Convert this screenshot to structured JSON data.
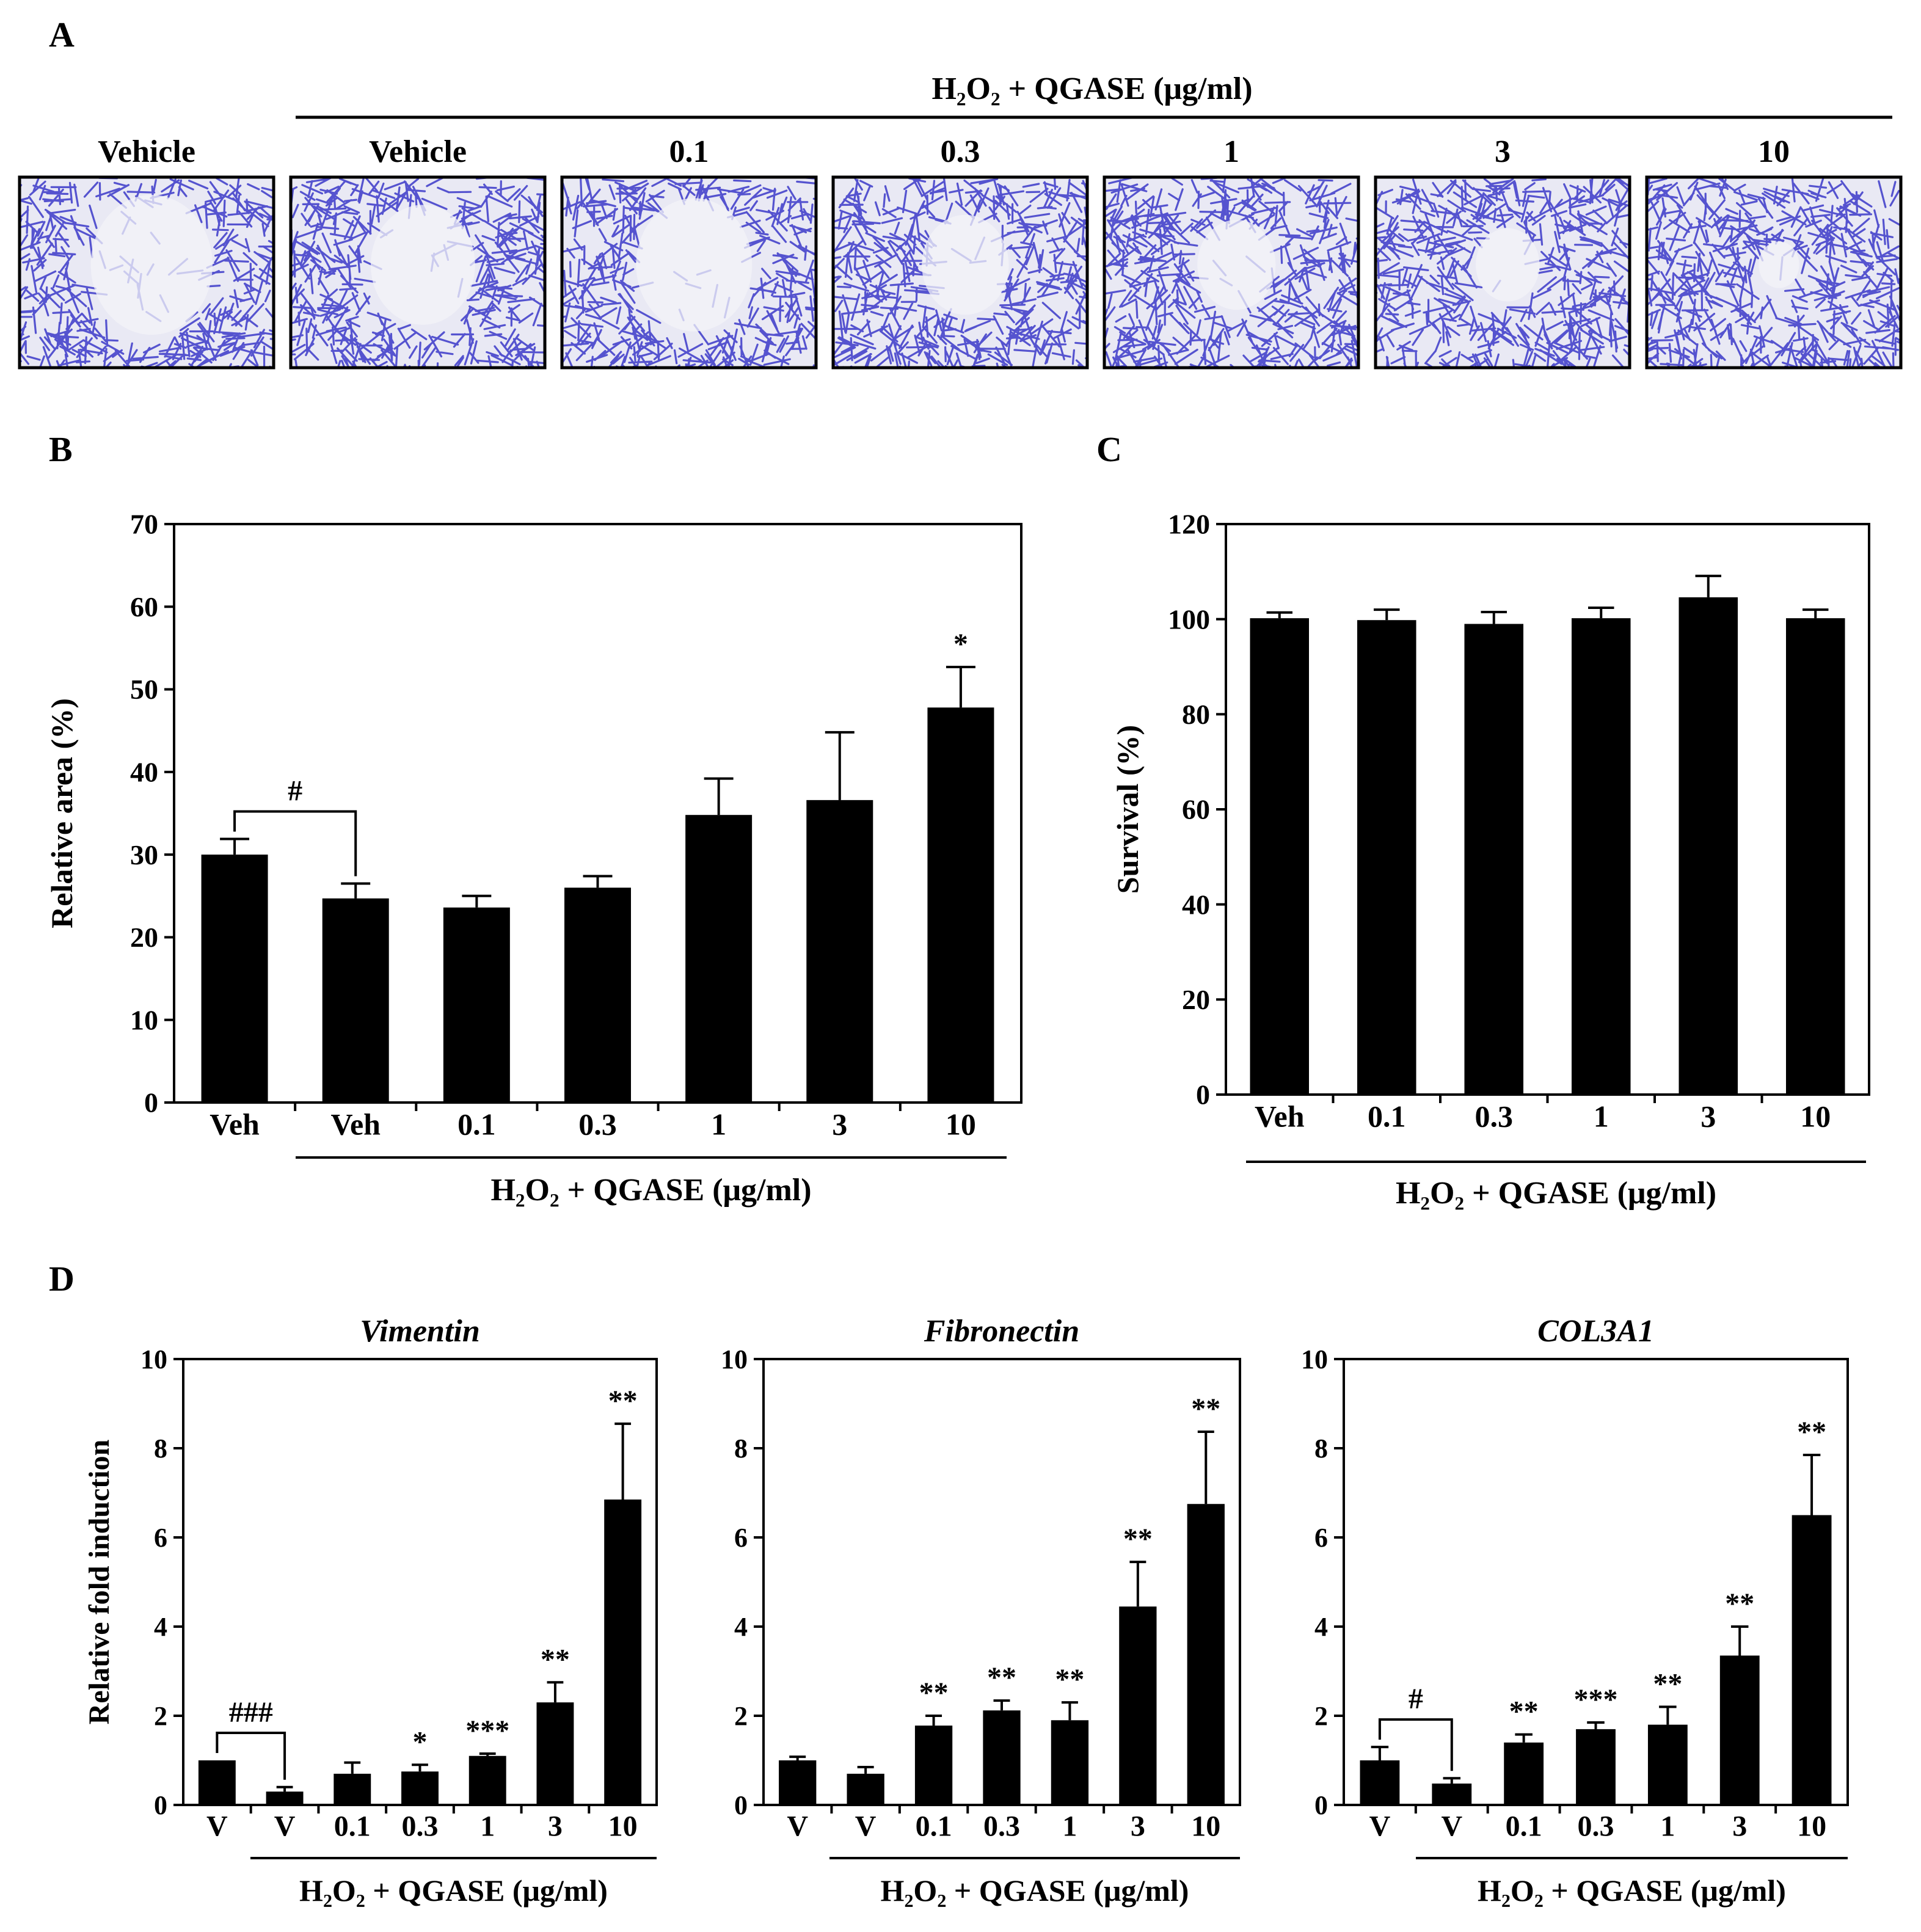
{
  "panel_labels": {
    "a": "A",
    "b": "B",
    "c": "C",
    "d": "D"
  },
  "colors": {
    "bar": "#000000",
    "cell_stain": "#3b38c8",
    "cell_bg": "#e9e9f4",
    "frame": "#000000"
  },
  "panel_a": {
    "group_header": "H₂O₂ + QGASE (μg/ml)",
    "images": [
      {
        "label": "Vehicle",
        "wound": 0.42
      },
      {
        "label": "Vehicle",
        "wound": 0.36
      },
      {
        "label": "0.1",
        "wound": 0.4
      },
      {
        "label": "0.3",
        "wound": 0.3
      },
      {
        "label": "1",
        "wound": 0.27
      },
      {
        "label": "3",
        "wound": 0.22
      },
      {
        "label": "10",
        "wound": 0.14
      }
    ]
  },
  "chart_data": [
    {
      "id": "B",
      "type": "bar",
      "title": "",
      "ylabel": "Relative area (%)",
      "xlabel": "H₂O₂ + QGASE (μg/ml)",
      "categories": [
        "Veh",
        "Veh",
        "0.1",
        "0.3",
        "1",
        "3",
        "10"
      ],
      "values": [
        30.0,
        24.7,
        23.6,
        26.0,
        34.8,
        36.6,
        47.8
      ],
      "errors": [
        1.9,
        1.8,
        1.4,
        1.4,
        4.4,
        8.2,
        4.9
      ],
      "sig": [
        "",
        "",
        "",
        "",
        "",
        "",
        "*"
      ],
      "bracket": {
        "from": 0,
        "to": 1,
        "label": "#"
      },
      "group_underline_from": 1,
      "ylim": [
        0,
        70
      ],
      "yticks": [
        0,
        10,
        20,
        30,
        40,
        50,
        60,
        70
      ]
    },
    {
      "id": "C",
      "type": "bar",
      "title": "",
      "ylabel": "Survival (%)",
      "xlabel": "H₂O₂ + QGASE (μg/ml)",
      "categories": [
        "Veh",
        "0.1",
        "0.3",
        "1",
        "3",
        "10"
      ],
      "values": [
        100.2,
        99.8,
        99.0,
        100.2,
        104.6,
        100.2
      ],
      "errors": [
        1.2,
        2.2,
        2.5,
        2.2,
        4.5,
        1.8
      ],
      "sig": [
        "",
        "",
        "",
        "",
        "",
        ""
      ],
      "group_underline_from": 0,
      "ylim": [
        0,
        120
      ],
      "yticks": [
        0,
        20,
        40,
        60,
        80,
        100,
        120
      ]
    },
    {
      "id": "D1",
      "type": "bar",
      "title": "Vimentin",
      "ylabel": "Relative fold induction",
      "xlabel": "H₂O₂ + QGASE (μg/ml)",
      "categories": [
        "V",
        "V",
        "0.1",
        "0.3",
        "1",
        "3",
        "10"
      ],
      "values": [
        1.0,
        0.3,
        0.7,
        0.75,
        1.1,
        2.3,
        6.85
      ],
      "errors": [
        0.0,
        0.1,
        0.25,
        0.15,
        0.05,
        0.45,
        1.7
      ],
      "sig": [
        "",
        "",
        "",
        "*",
        "***",
        "**",
        "**"
      ],
      "bracket": {
        "from": 0,
        "to": 1,
        "label": "###"
      },
      "group_underline_from": 1,
      "ylim": [
        0,
        10
      ],
      "yticks": [
        0,
        2,
        4,
        6,
        8,
        10
      ]
    },
    {
      "id": "D2",
      "type": "bar",
      "title": "Fibronectin",
      "ylabel": "",
      "xlabel": "H₂O₂ + QGASE (μg/ml)",
      "categories": [
        "V",
        "V",
        "0.1",
        "0.3",
        "1",
        "3",
        "10"
      ],
      "values": [
        1.0,
        0.7,
        1.78,
        2.12,
        1.9,
        4.45,
        6.75
      ],
      "errors": [
        0.08,
        0.15,
        0.22,
        0.22,
        0.4,
        1.0,
        1.62
      ],
      "sig": [
        "",
        "",
        "**",
        "**",
        "**",
        "**",
        "**"
      ],
      "group_underline_from": 1,
      "ylim": [
        0,
        10
      ],
      "yticks": [
        0,
        2,
        4,
        6,
        8,
        10
      ]
    },
    {
      "id": "D3",
      "type": "bar",
      "title": "COL3A1",
      "ylabel": "",
      "xlabel": "H₂O₂ + QGASE (μg/ml)",
      "categories": [
        "V",
        "V",
        "0.1",
        "0.3",
        "1",
        "3",
        "10"
      ],
      "values": [
        1.0,
        0.48,
        1.4,
        1.7,
        1.8,
        3.35,
        6.5
      ],
      "errors": [
        0.3,
        0.12,
        0.18,
        0.15,
        0.4,
        0.65,
        1.35
      ],
      "sig": [
        "",
        "",
        "**",
        "***",
        "**",
        "**",
        "**"
      ],
      "bracket": {
        "from": 0,
        "to": 1,
        "label": "#"
      },
      "group_underline_from": 1,
      "ylim": [
        0,
        10
      ],
      "yticks": [
        0,
        2,
        4,
        6,
        8,
        10
      ]
    }
  ]
}
